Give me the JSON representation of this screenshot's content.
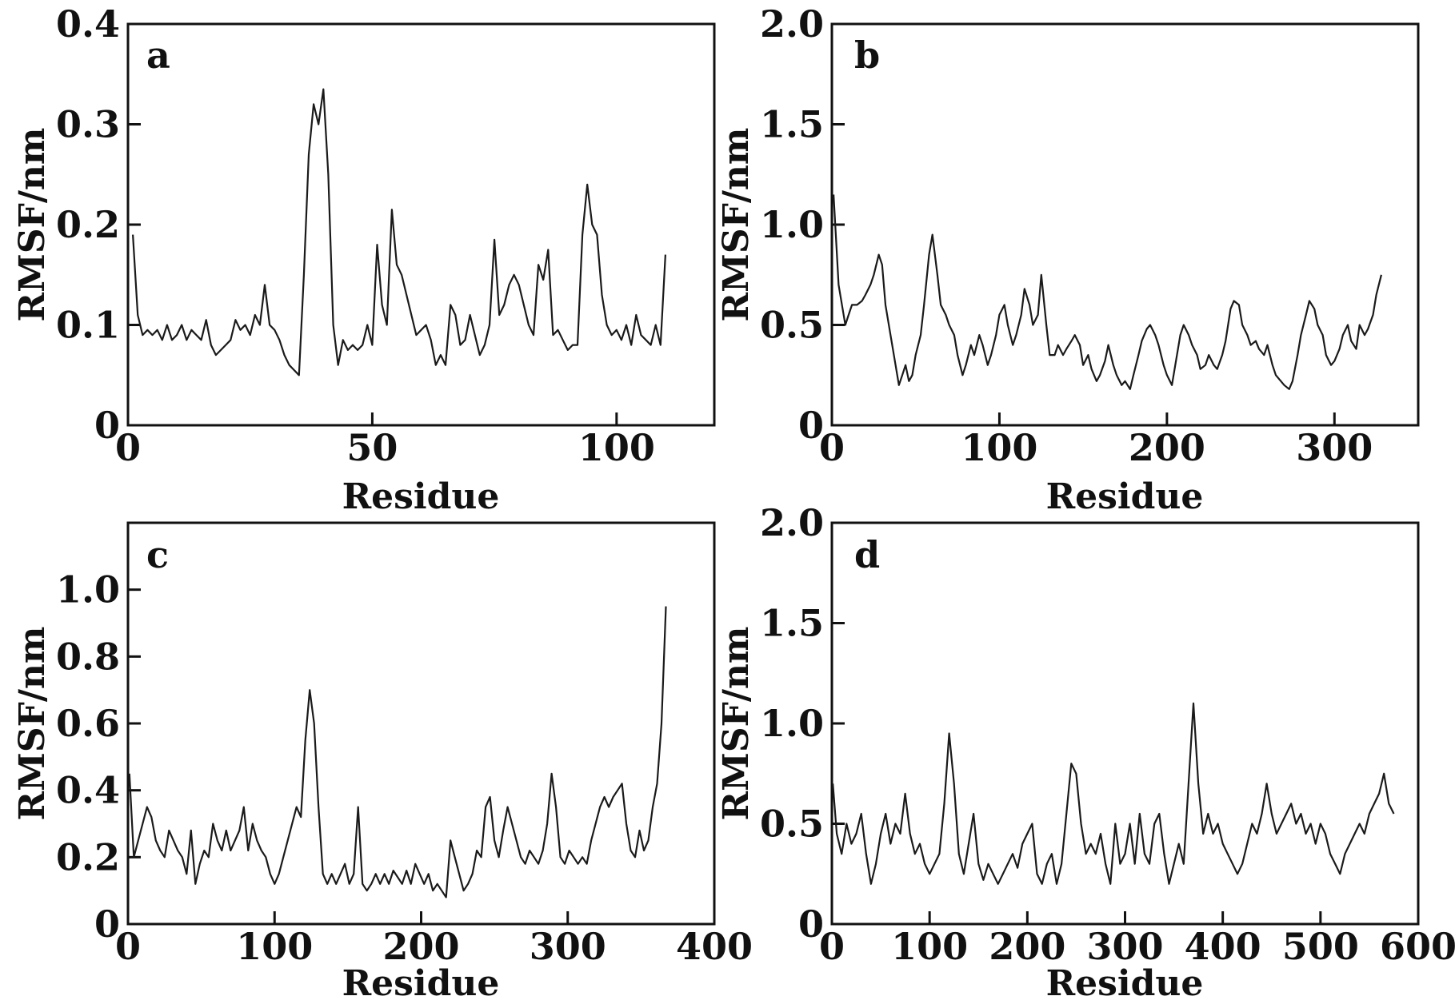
{
  "chart_data": [
    {
      "type": "line",
      "panel_label": "a",
      "xlabel": "Residue",
      "ylabel": "RMSF/nm",
      "xlim": [
        0,
        120
      ],
      "ylim": [
        0,
        0.4
      ],
      "xticks": [
        0,
        50,
        100
      ],
      "xtick_labels": [
        "0",
        "50",
        "100"
      ],
      "yticks": [
        0,
        0.1,
        0.2,
        0.3,
        0.4
      ],
      "ytick_labels": [
        "0",
        "0.1",
        "0.2",
        "0.3",
        "0.4"
      ],
      "grid": false,
      "x": [
        1,
        2,
        3,
        4,
        5,
        6,
        7,
        8,
        9,
        10,
        11,
        12,
        13,
        14,
        15,
        16,
        17,
        18,
        19,
        20,
        21,
        22,
        23,
        24,
        25,
        26,
        27,
        28,
        29,
        30,
        31,
        32,
        33,
        34,
        35,
        36,
        37,
        38,
        39,
        40,
        41,
        42,
        43,
        44,
        45,
        46,
        47,
        48,
        49,
        50,
        51,
        52,
        53,
        54,
        55,
        56,
        57,
        58,
        59,
        60,
        61,
        62,
        63,
        64,
        65,
        66,
        67,
        68,
        69,
        70,
        71,
        72,
        73,
        74,
        75,
        76,
        77,
        78,
        79,
        80,
        81,
        82,
        83,
        84,
        85,
        86,
        87,
        88,
        89,
        90,
        91,
        92,
        93,
        94,
        95,
        96,
        97,
        98,
        99,
        100,
        101,
        102,
        103,
        104,
        105,
        106,
        107,
        108,
        109,
        110
      ],
      "y": [
        0.19,
        0.11,
        0.09,
        0.095,
        0.09,
        0.095,
        0.085,
        0.1,
        0.085,
        0.09,
        0.1,
        0.085,
        0.095,
        0.09,
        0.085,
        0.105,
        0.08,
        0.07,
        0.075,
        0.08,
        0.085,
        0.105,
        0.095,
        0.1,
        0.09,
        0.11,
        0.1,
        0.14,
        0.1,
        0.095,
        0.085,
        0.07,
        0.06,
        0.055,
        0.05,
        0.15,
        0.27,
        0.32,
        0.3,
        0.335,
        0.25,
        0.1,
        0.06,
        0.085,
        0.075,
        0.08,
        0.075,
        0.08,
        0.1,
        0.08,
        0.18,
        0.12,
        0.1,
        0.215,
        0.16,
        0.15,
        0.13,
        0.11,
        0.09,
        0.095,
        0.1,
        0.085,
        0.06,
        0.07,
        0.06,
        0.12,
        0.11,
        0.08,
        0.085,
        0.11,
        0.09,
        0.07,
        0.08,
        0.1,
        0.185,
        0.11,
        0.12,
        0.14,
        0.15,
        0.14,
        0.12,
        0.1,
        0.09,
        0.16,
        0.145,
        0.175,
        0.09,
        0.095,
        0.085,
        0.075,
        0.08,
        0.08,
        0.19,
        0.24,
        0.2,
        0.19,
        0.13,
        0.1,
        0.09,
        0.095,
        0.085,
        0.1,
        0.08,
        0.11,
        0.09,
        0.085,
        0.08,
        0.1,
        0.08,
        0.17
      ]
    },
    {
      "type": "line",
      "panel_label": "b",
      "xlabel": "Residue",
      "ylabel": "RMSF/nm",
      "xlim": [
        0,
        350
      ],
      "ylim": [
        0,
        2.0
      ],
      "xticks": [
        0,
        100,
        200,
        300
      ],
      "xtick_labels": [
        "0",
        "100",
        "200",
        "300"
      ],
      "yticks": [
        0,
        0.5,
        1.0,
        1.5,
        2.0
      ],
      "ytick_labels": [
        "0",
        "0.5",
        "1.0",
        "1.5",
        "2.0"
      ],
      "grid": false,
      "x": [
        1,
        4,
        6,
        8,
        10,
        12,
        15,
        18,
        20,
        23,
        25,
        28,
        30,
        32,
        35,
        38,
        40,
        42,
        44,
        46,
        48,
        50,
        53,
        55,
        58,
        60,
        63,
        65,
        68,
        70,
        73,
        75,
        78,
        80,
        83,
        85,
        88,
        90,
        93,
        95,
        98,
        100,
        103,
        105,
        108,
        110,
        113,
        115,
        118,
        120,
        123,
        125,
        128,
        130,
        133,
        135,
        138,
        140,
        143,
        145,
        148,
        150,
        153,
        155,
        158,
        160,
        163,
        165,
        168,
        170,
        173,
        175,
        178,
        180,
        183,
        185,
        188,
        190,
        193,
        195,
        198,
        200,
        203,
        205,
        208,
        210,
        213,
        215,
        218,
        220,
        223,
        225,
        228,
        230,
        233,
        235,
        238,
        240,
        243,
        245,
        248,
        250,
        253,
        255,
        258,
        260,
        263,
        265,
        268,
        270,
        273,
        275,
        278,
        280,
        283,
        285,
        288,
        290,
        293,
        295,
        298,
        300,
        303,
        305,
        308,
        310,
        313,
        315,
        318,
        320,
        323,
        325,
        328
      ],
      "y": [
        1.15,
        0.7,
        0.6,
        0.5,
        0.55,
        0.6,
        0.6,
        0.62,
        0.65,
        0.7,
        0.75,
        0.85,
        0.8,
        0.6,
        0.45,
        0.3,
        0.2,
        0.25,
        0.3,
        0.22,
        0.25,
        0.35,
        0.45,
        0.6,
        0.85,
        0.95,
        0.75,
        0.6,
        0.55,
        0.5,
        0.45,
        0.35,
        0.25,
        0.3,
        0.4,
        0.35,
        0.45,
        0.4,
        0.3,
        0.35,
        0.45,
        0.55,
        0.6,
        0.5,
        0.4,
        0.45,
        0.55,
        0.68,
        0.6,
        0.5,
        0.55,
        0.75,
        0.5,
        0.35,
        0.35,
        0.4,
        0.35,
        0.38,
        0.42,
        0.45,
        0.4,
        0.3,
        0.35,
        0.28,
        0.22,
        0.25,
        0.32,
        0.4,
        0.3,
        0.25,
        0.2,
        0.22,
        0.18,
        0.25,
        0.35,
        0.42,
        0.48,
        0.5,
        0.45,
        0.4,
        0.3,
        0.25,
        0.2,
        0.3,
        0.45,
        0.5,
        0.45,
        0.4,
        0.35,
        0.28,
        0.3,
        0.35,
        0.3,
        0.28,
        0.35,
        0.42,
        0.58,
        0.62,
        0.6,
        0.5,
        0.45,
        0.4,
        0.42,
        0.38,
        0.35,
        0.4,
        0.3,
        0.25,
        0.22,
        0.2,
        0.18,
        0.22,
        0.35,
        0.45,
        0.55,
        0.62,
        0.58,
        0.5,
        0.45,
        0.35,
        0.3,
        0.32,
        0.38,
        0.45,
        0.5,
        0.42,
        0.38,
        0.5,
        0.45,
        0.48,
        0.55,
        0.65,
        0.75
      ]
    },
    {
      "type": "line",
      "panel_label": "c",
      "xlabel": "Residue",
      "ylabel": "RMSF/nm",
      "xlim": [
        0,
        400
      ],
      "ylim": [
        0,
        1.2
      ],
      "xticks": [
        0,
        100,
        200,
        300,
        400
      ],
      "xtick_labels": [
        "0",
        "100",
        "200",
        "300",
        "400"
      ],
      "yticks": [
        0,
        0.2,
        0.4,
        0.6,
        0.8,
        1.0
      ],
      "ytick_labels": [
        "0",
        "0.2",
        "0.4",
        "0.6",
        "0.8",
        "1.0"
      ],
      "grid": false,
      "x": [
        1,
        4,
        7,
        10,
        13,
        16,
        19,
        22,
        25,
        28,
        31,
        34,
        37,
        40,
        43,
        46,
        49,
        52,
        55,
        58,
        61,
        64,
        67,
        70,
        73,
        76,
        79,
        82,
        85,
        88,
        91,
        94,
        97,
        100,
        103,
        106,
        109,
        112,
        115,
        118,
        121,
        124,
        127,
        130,
        133,
        136,
        139,
        142,
        145,
        148,
        151,
        154,
        157,
        160,
        163,
        166,
        169,
        172,
        175,
        178,
        181,
        184,
        187,
        190,
        193,
        196,
        199,
        202,
        205,
        208,
        211,
        214,
        217,
        220,
        223,
        226,
        229,
        232,
        235,
        238,
        241,
        244,
        247,
        250,
        253,
        256,
        259,
        262,
        265,
        268,
        271,
        274,
        277,
        280,
        283,
        286,
        289,
        292,
        295,
        298,
        301,
        304,
        307,
        310,
        313,
        316,
        319,
        322,
        325,
        328,
        331,
        334,
        337,
        340,
        343,
        346,
        349,
        352,
        355,
        358,
        361,
        364,
        367
      ],
      "y": [
        0.45,
        0.2,
        0.25,
        0.3,
        0.35,
        0.32,
        0.25,
        0.22,
        0.2,
        0.28,
        0.25,
        0.22,
        0.2,
        0.15,
        0.28,
        0.12,
        0.18,
        0.22,
        0.2,
        0.3,
        0.25,
        0.22,
        0.28,
        0.22,
        0.25,
        0.28,
        0.35,
        0.22,
        0.3,
        0.25,
        0.22,
        0.2,
        0.15,
        0.12,
        0.15,
        0.2,
        0.25,
        0.3,
        0.35,
        0.32,
        0.55,
        0.7,
        0.6,
        0.35,
        0.15,
        0.12,
        0.15,
        0.12,
        0.15,
        0.18,
        0.12,
        0.15,
        0.35,
        0.12,
        0.1,
        0.12,
        0.15,
        0.12,
        0.15,
        0.12,
        0.16,
        0.14,
        0.12,
        0.16,
        0.12,
        0.18,
        0.15,
        0.12,
        0.15,
        0.1,
        0.12,
        0.1,
        0.08,
        0.25,
        0.2,
        0.15,
        0.1,
        0.12,
        0.15,
        0.22,
        0.2,
        0.35,
        0.38,
        0.25,
        0.2,
        0.28,
        0.35,
        0.3,
        0.25,
        0.2,
        0.18,
        0.22,
        0.2,
        0.18,
        0.22,
        0.3,
        0.45,
        0.35,
        0.2,
        0.18,
        0.22,
        0.2,
        0.18,
        0.2,
        0.18,
        0.25,
        0.3,
        0.35,
        0.38,
        0.35,
        0.38,
        0.4,
        0.42,
        0.3,
        0.22,
        0.2,
        0.28,
        0.22,
        0.25,
        0.35,
        0.42,
        0.6,
        0.95
      ]
    },
    {
      "type": "line",
      "panel_label": "d",
      "xlabel": "Residue",
      "ylabel": "RMSF/nm",
      "xlim": [
        0,
        600
      ],
      "ylim": [
        0,
        2.0
      ],
      "xticks": [
        0,
        100,
        200,
        300,
        400,
        500,
        600
      ],
      "xtick_labels": [
        "0",
        "100",
        "200",
        "300",
        "400",
        "500",
        "600"
      ],
      "yticks": [
        0,
        0.5,
        1.0,
        1.5,
        2.0
      ],
      "ytick_labels": [
        "0",
        "0.5",
        "1.0",
        "1.5",
        "2.0"
      ],
      "grid": false,
      "x": [
        1,
        5,
        10,
        15,
        20,
        25,
        30,
        35,
        40,
        45,
        50,
        55,
        60,
        65,
        70,
        75,
        80,
        85,
        90,
        95,
        100,
        105,
        110,
        115,
        120,
        125,
        130,
        135,
        140,
        145,
        150,
        155,
        160,
        165,
        170,
        175,
        180,
        185,
        190,
        195,
        200,
        205,
        210,
        215,
        220,
        225,
        230,
        235,
        240,
        245,
        250,
        255,
        260,
        265,
        270,
        275,
        280,
        285,
        290,
        295,
        300,
        305,
        310,
        315,
        320,
        325,
        330,
        335,
        340,
        345,
        350,
        355,
        360,
        365,
        370,
        375,
        380,
        385,
        390,
        395,
        400,
        405,
        410,
        415,
        420,
        425,
        430,
        435,
        440,
        445,
        450,
        455,
        460,
        465,
        470,
        475,
        480,
        485,
        490,
        495,
        500,
        505,
        510,
        515,
        520,
        525,
        530,
        535,
        540,
        545,
        550,
        555,
        560,
        565,
        570,
        575
      ],
      "y": [
        0.7,
        0.45,
        0.35,
        0.5,
        0.4,
        0.45,
        0.55,
        0.35,
        0.2,
        0.3,
        0.45,
        0.55,
        0.4,
        0.5,
        0.45,
        0.65,
        0.45,
        0.35,
        0.4,
        0.3,
        0.25,
        0.3,
        0.35,
        0.6,
        0.95,
        0.7,
        0.35,
        0.25,
        0.4,
        0.55,
        0.3,
        0.22,
        0.3,
        0.25,
        0.2,
        0.25,
        0.3,
        0.35,
        0.28,
        0.4,
        0.45,
        0.5,
        0.25,
        0.2,
        0.3,
        0.35,
        0.2,
        0.3,
        0.55,
        0.8,
        0.75,
        0.5,
        0.35,
        0.4,
        0.35,
        0.45,
        0.3,
        0.2,
        0.5,
        0.3,
        0.35,
        0.5,
        0.3,
        0.55,
        0.35,
        0.3,
        0.5,
        0.55,
        0.35,
        0.2,
        0.3,
        0.4,
        0.3,
        0.7,
        1.1,
        0.7,
        0.45,
        0.55,
        0.45,
        0.5,
        0.4,
        0.35,
        0.3,
        0.25,
        0.3,
        0.4,
        0.5,
        0.45,
        0.55,
        0.7,
        0.55,
        0.45,
        0.5,
        0.55,
        0.6,
        0.5,
        0.55,
        0.45,
        0.5,
        0.4,
        0.5,
        0.45,
        0.35,
        0.3,
        0.25,
        0.35,
        0.4,
        0.45,
        0.5,
        0.45,
        0.55,
        0.6,
        0.65,
        0.75,
        0.6,
        0.55
      ]
    }
  ]
}
